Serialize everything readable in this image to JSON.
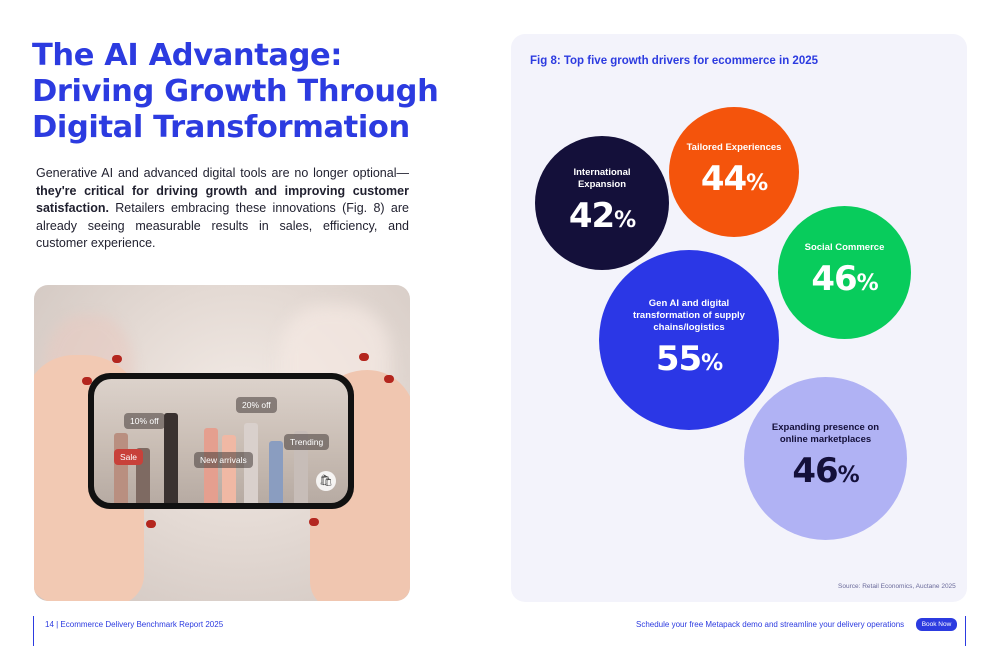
{
  "heading": {
    "line1": "The AI Advantage:",
    "line2": "Driving Growth Through",
    "line3": "Digital Transformation"
  },
  "intro": {
    "part1": "Generative AI and advanced digital tools are no longer optional—",
    "bold": "they're critical for driving growth and improving customer satisfaction.",
    "part2": " Retailers embracing these innovations (Fig. 8) are already seeing measurable results in sales, efficiency, and customer experience."
  },
  "photo": {
    "tags": {
      "ten_off": "10% off",
      "twenty_off": "20% off",
      "trending": "Trending",
      "sale": "Sale",
      "new_arrivals": "New arrivals"
    },
    "bag_icon": "shopping-bag-icon"
  },
  "chart": {
    "title": "Fig 8: Top five growth drivers for ecommerce in 2025",
    "source": "Source: Retail Economics, Auctane 2025"
  },
  "chart_data": {
    "type": "bubble",
    "title": "Fig 8: Top five growth drivers for ecommerce in 2025",
    "unit": "%",
    "items": [
      {
        "label": "International Expansion",
        "value": 42,
        "display": "42",
        "color": "#14103a"
      },
      {
        "label": "Tailored Experiences",
        "value": 44,
        "display": "44",
        "color": "#f4540c"
      },
      {
        "label": "Social Commerce",
        "value": 46,
        "display": "46",
        "color": "#08cc5c"
      },
      {
        "label": "Gen AI and digital transformation of supply chains/logistics",
        "value": 55,
        "display": "55",
        "color": "#2b37e6"
      },
      {
        "label": "Expanding presence on online marketplaces",
        "value": 46,
        "display": "46",
        "color": "#b0b2f4"
      }
    ]
  },
  "footer": {
    "left": "14 | Ecommerce Delivery Benchmark Report 2025",
    "right": "Schedule your free Metapack demo and streamline your delivery operations",
    "button": "Book Now"
  }
}
